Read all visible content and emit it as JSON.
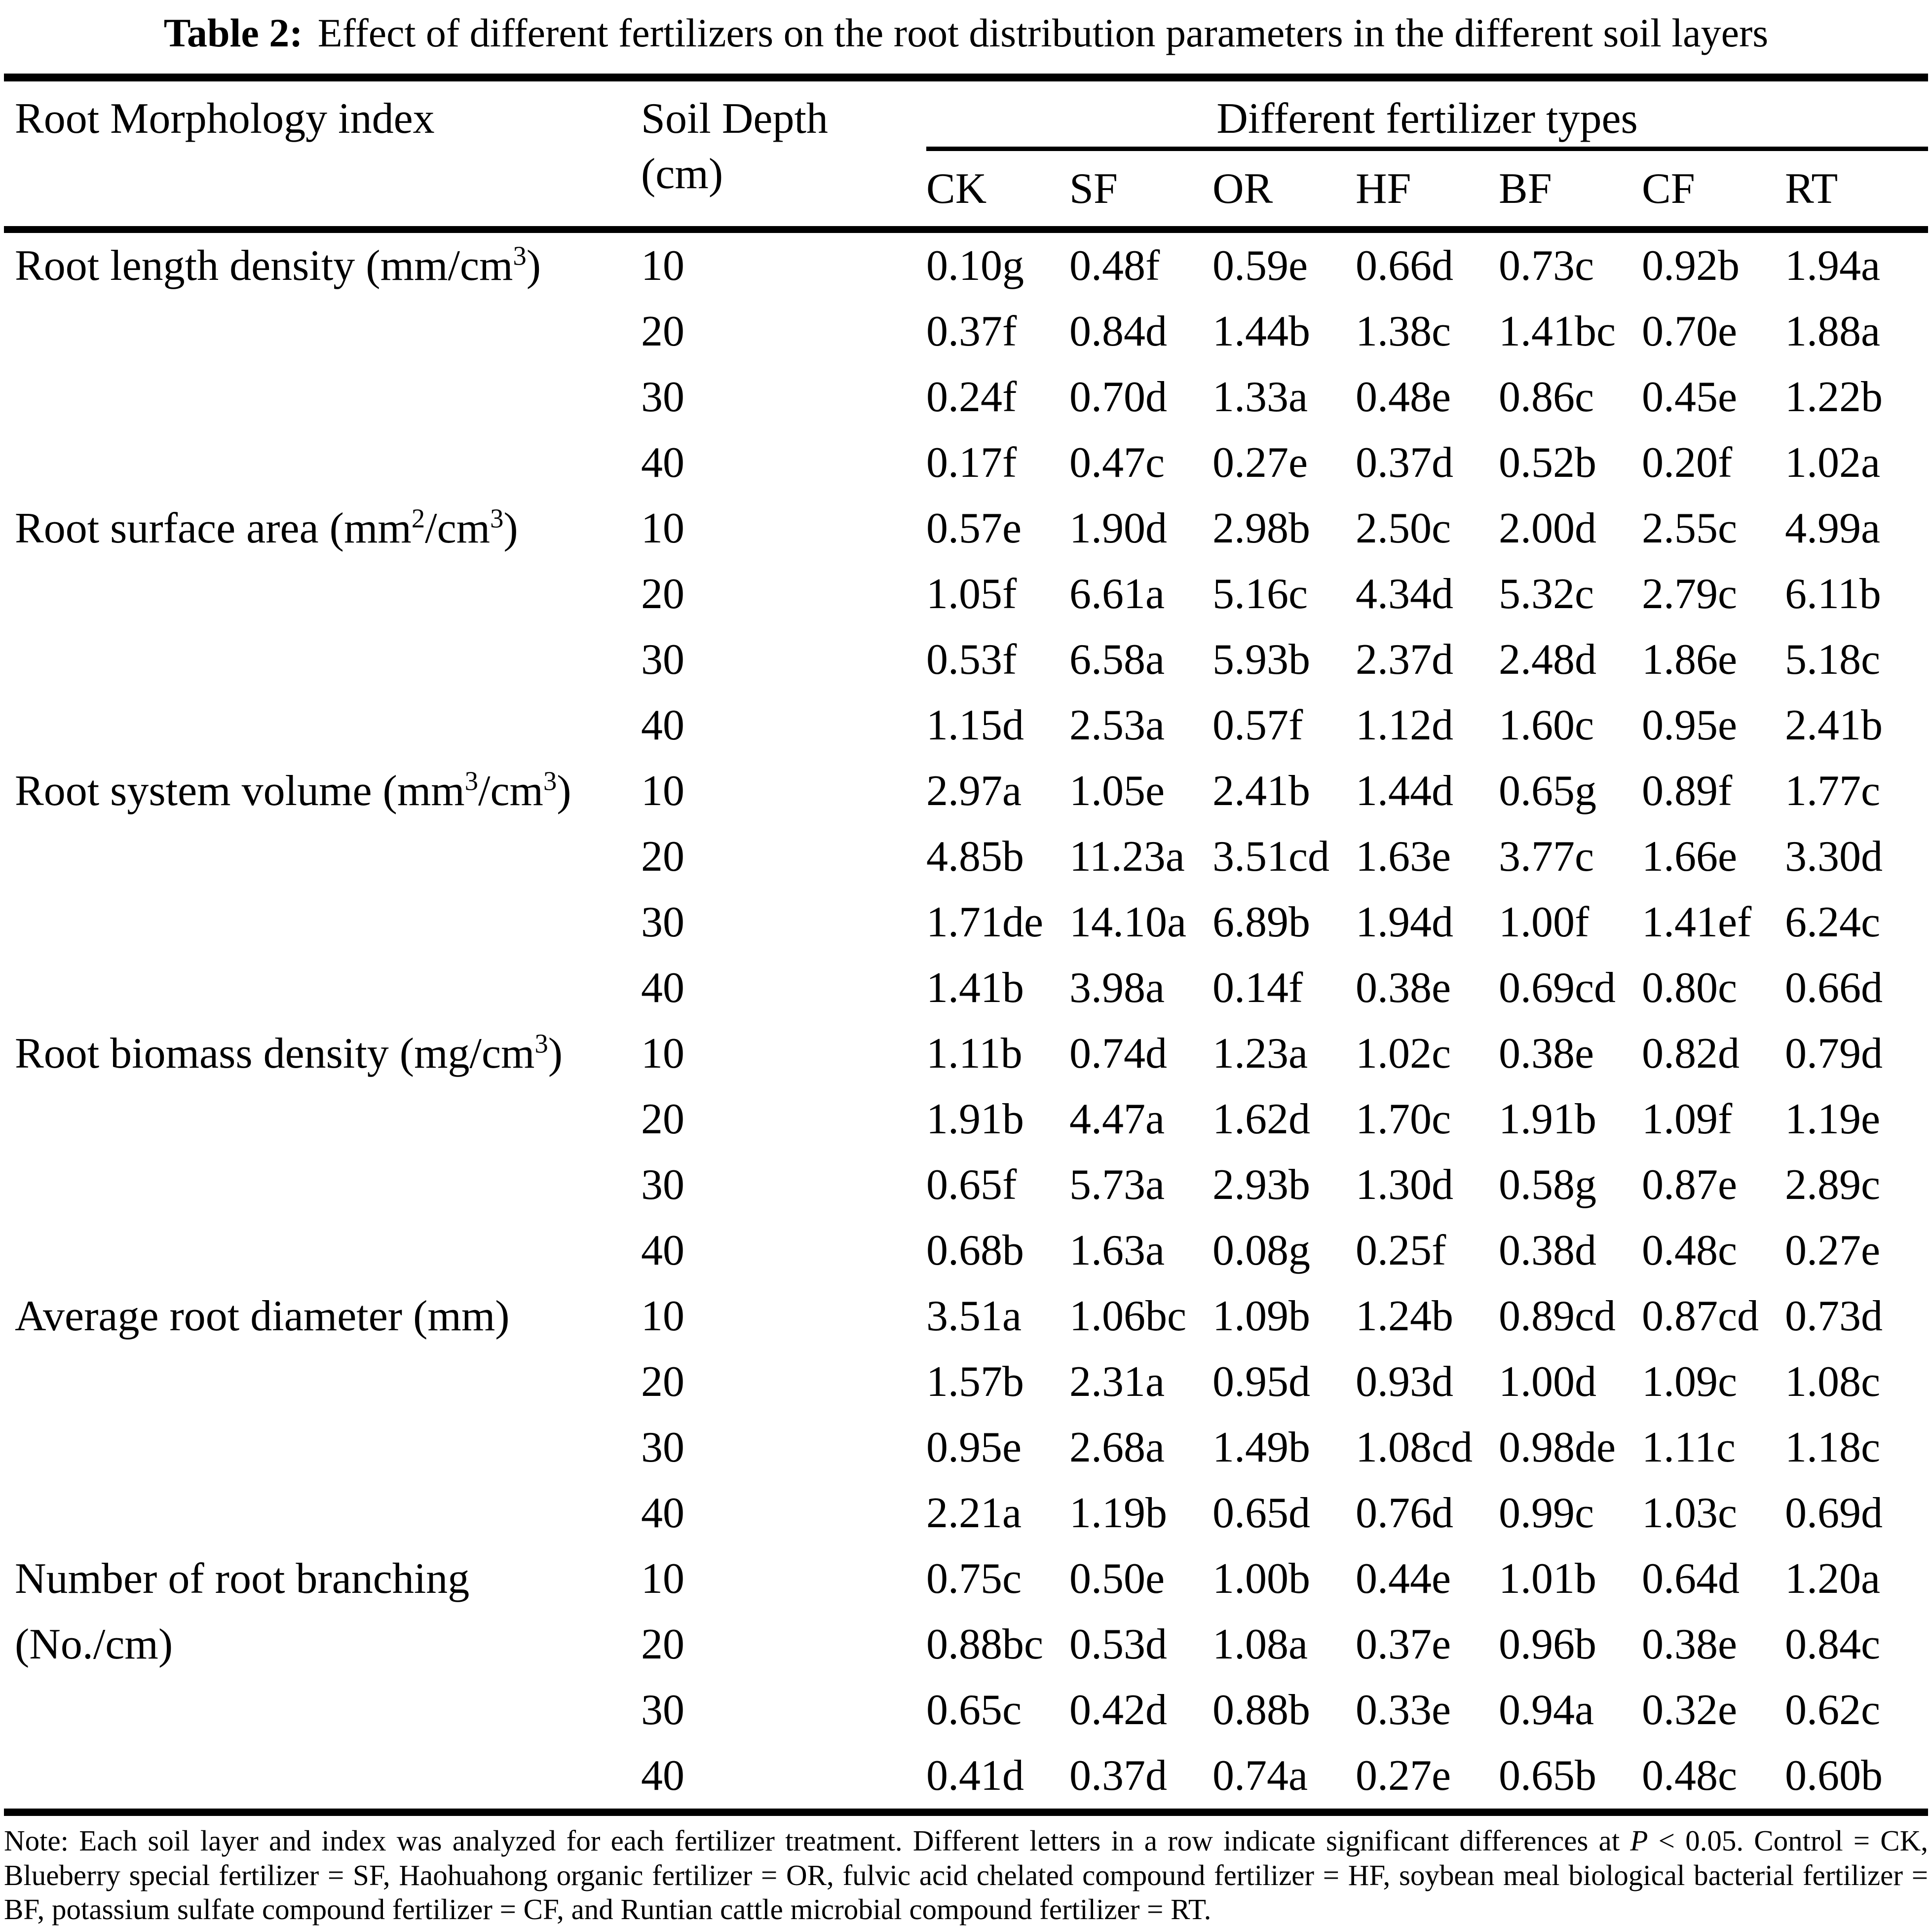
{
  "title": {
    "label": "Table 2:",
    "text": "Effect of different fertilizers on the root distribution parameters in the different soil layers"
  },
  "table": {
    "header": {
      "index_col": "Root Morphology index",
      "depth_col_line1": "Soil Depth",
      "depth_col_line2": "(cm)",
      "span_header": "Different fertilizer types",
      "fertilizer_types": [
        "CK",
        "SF",
        "OR",
        "HF",
        "BF",
        "CF",
        "RT"
      ]
    },
    "groups": [
      {
        "index_label": [
          {
            "t": "Root length density (mm/cm"
          },
          {
            "s": "3"
          },
          {
            "t": ")"
          }
        ],
        "rows": [
          {
            "depth": "10",
            "values": [
              "0.10g",
              "0.48f",
              "0.59e",
              "0.66d",
              "0.73c",
              "0.92b",
              "1.94a"
            ]
          },
          {
            "depth": "20",
            "values": [
              "0.37f",
              "0.84d",
              "1.44b",
              "1.38c",
              "1.41bc",
              "0.70e",
              "1.88a"
            ]
          },
          {
            "depth": "30",
            "values": [
              "0.24f",
              "0.70d",
              "1.33a",
              "0.48e",
              "0.86c",
              "0.45e",
              "1.22b"
            ]
          },
          {
            "depth": "40",
            "values": [
              "0.17f",
              "0.47c",
              "0.27e",
              "0.37d",
              "0.52b",
              "0.20f",
              "1.02a"
            ]
          }
        ]
      },
      {
        "index_label": [
          {
            "t": "Root surface area (mm"
          },
          {
            "s": "2"
          },
          {
            "t": "/cm"
          },
          {
            "s": "3"
          },
          {
            "t": ")"
          }
        ],
        "rows": [
          {
            "depth": "10",
            "values": [
              "0.57e",
              "1.90d",
              "2.98b",
              "2.50c",
              "2.00d",
              "2.55c",
              "4.99a"
            ]
          },
          {
            "depth": "20",
            "values": [
              "1.05f",
              "6.61a",
              "5.16c",
              "4.34d",
              "5.32c",
              "2.79c",
              "6.11b"
            ]
          },
          {
            "depth": "30",
            "values": [
              "0.53f",
              "6.58a",
              "5.93b",
              "2.37d",
              "2.48d",
              "1.86e",
              "5.18c"
            ]
          },
          {
            "depth": "40",
            "values": [
              "1.15d",
              "2.53a",
              "0.57f",
              "1.12d",
              "1.60c",
              "0.95e",
              "2.41b"
            ]
          }
        ]
      },
      {
        "index_label": [
          {
            "t": "Root system volume (mm"
          },
          {
            "s": "3"
          },
          {
            "t": "/cm"
          },
          {
            "s": "3"
          },
          {
            "t": ")"
          }
        ],
        "rows": [
          {
            "depth": "10",
            "values": [
              "2.97a",
              "1.05e",
              "2.41b",
              "1.44d",
              "0.65g",
              "0.89f",
              "1.77c"
            ]
          },
          {
            "depth": "20",
            "values": [
              "4.85b",
              "11.23a",
              "3.51cd",
              "1.63e",
              "3.77c",
              "1.66e",
              "3.30d"
            ]
          },
          {
            "depth": "30",
            "values": [
              "1.71de",
              "14.10a",
              "6.89b",
              "1.94d",
              "1.00f",
              "1.41ef",
              "6.24c"
            ]
          },
          {
            "depth": "40",
            "values": [
              "1.41b",
              "3.98a",
              "0.14f",
              "0.38e",
              "0.69cd",
              "0.80c",
              "0.66d"
            ]
          }
        ]
      },
      {
        "index_label": [
          {
            "t": "Root biomass density (mg/cm"
          },
          {
            "s": "3"
          },
          {
            "t": ")"
          }
        ],
        "rows": [
          {
            "depth": "10",
            "values": [
              "1.11b",
              "0.74d",
              "1.23a",
              "1.02c",
              "0.38e",
              "0.82d",
              "0.79d"
            ]
          },
          {
            "depth": "20",
            "values": [
              "1.91b",
              "4.47a",
              "1.62d",
              "1.70c",
              "1.91b",
              "1.09f",
              "1.19e"
            ]
          },
          {
            "depth": "30",
            "values": [
              "0.65f",
              "5.73a",
              "2.93b",
              "1.30d",
              "0.58g",
              "0.87e",
              "2.89c"
            ]
          },
          {
            "depth": "40",
            "values": [
              "0.68b",
              "1.63a",
              "0.08g",
              "0.25f",
              "0.38d",
              "0.48c",
              "0.27e"
            ]
          }
        ]
      },
      {
        "index_label": [
          {
            "t": "Average root diameter (mm)"
          }
        ],
        "rows": [
          {
            "depth": "10",
            "values": [
              "3.51a",
              "1.06bc",
              "1.09b",
              "1.24b",
              "0.89cd",
              "0.87cd",
              "0.73d"
            ]
          },
          {
            "depth": "20",
            "values": [
              "1.57b",
              "2.31a",
              "0.95d",
              "0.93d",
              "1.00d",
              "1.09c",
              "1.08c"
            ]
          },
          {
            "depth": "30",
            "values": [
              "0.95e",
              "2.68a",
              "1.49b",
              "1.08cd",
              "0.98de",
              "1.11c",
              "1.18c"
            ]
          },
          {
            "depth": "40",
            "values": [
              "2.21a",
              "1.19b",
              "0.65d",
              "0.76d",
              "0.99c",
              "1.03c",
              "0.69d"
            ]
          }
        ]
      },
      {
        "index_label": [
          {
            "t": "Number of root branching (No./cm)"
          }
        ],
        "rows": [
          {
            "depth": "10",
            "values": [
              "0.75c",
              "0.50e",
              "1.00b",
              "0.44e",
              "1.01b",
              "0.64d",
              "1.20a"
            ]
          },
          {
            "depth": "20",
            "values": [
              "0.88bc",
              "0.53d",
              "1.08a",
              "0.37e",
              "0.96b",
              "0.38e",
              "0.84c"
            ]
          },
          {
            "depth": "30",
            "values": [
              "0.65c",
              "0.42d",
              "0.88b",
              "0.33e",
              "0.94a",
              "0.32e",
              "0.62c"
            ]
          },
          {
            "depth": "40",
            "values": [
              "0.41d",
              "0.37d",
              "0.74a",
              "0.27e",
              "0.65b",
              "0.48c",
              "0.60b"
            ]
          }
        ]
      }
    ]
  },
  "footnote": {
    "segments": [
      {
        "t": "Note: Each soil layer and index was analyzed for each fertilizer treatment. Different letters in a row indicate significant differences at "
      },
      {
        "i": "P"
      },
      {
        "t": " < 0.05. Control = CK, Blueberry special fertilizer = SF, Haohuahong organic fertilizer = OR, fulvic acid chelated compound fertilizer = HF, soybean meal biological bacterial fertilizer = BF, potassium sulfate compound fertilizer = CF, and Runtian cattle microbial compound fertilizer = RT."
      }
    ]
  }
}
